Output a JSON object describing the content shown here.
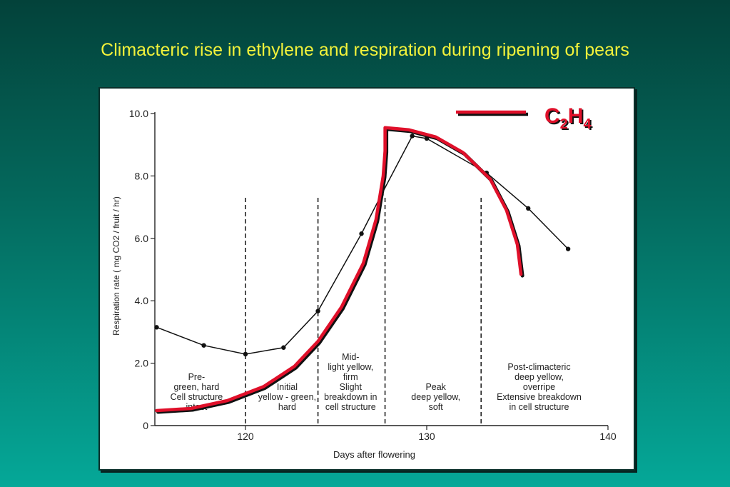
{
  "slide": {
    "title": "Climacteric rise in ethylene and respiration during ripening of pears"
  },
  "colors": {
    "background_top": "#03423a",
    "background_bottom": "#05a898",
    "title": "#f2f23a",
    "ethylene": "#e0102a",
    "respiration": "#111111"
  },
  "chart_data": {
    "type": "line",
    "title": "",
    "xlabel": "Days after flowering",
    "ylabel": "Respiration rate ( mg CO2 / fruit / hr)",
    "xlim": [
      115,
      140
    ],
    "ylim": [
      0,
      10
    ],
    "xticks": [
      120,
      130,
      140
    ],
    "xtick_labels": [
      "120",
      "130",
      "140"
    ],
    "yticks": [
      0,
      2,
      4,
      6,
      8,
      10
    ],
    "ytick_labels": [
      "0",
      "2.0",
      "4.0",
      "6.0",
      "8.0",
      "10.0"
    ],
    "grid": false,
    "legend": {
      "position": "top-right",
      "label_main": "C",
      "sub1": "2",
      "mid": "H",
      "sub2": "4"
    },
    "series": [
      {
        "name": "",
        "style": "line-with-points",
        "x": [
          115.1,
          117.7,
          120.0,
          122.1,
          124.0,
          126.4,
          127.5,
          129.2,
          130.0,
          133.3,
          135.6,
          137.8
        ],
        "y": [
          3.15,
          2.57,
          2.29,
          2.5,
          3.67,
          6.15,
          7.4,
          9.28,
          9.2,
          8.1,
          6.96,
          5.66
        ]
      },
      {
        "name": "C2H4",
        "style": "thick-red-curve",
        "x": [
          115.1,
          117.0,
          119.0,
          121.0,
          122.7,
          124.0,
          125.3,
          126.5,
          127.2,
          127.6,
          127.7,
          127.7,
          129.0,
          130.5,
          132.0,
          133.5,
          134.4,
          135.0,
          135.2
        ],
        "y": [
          0.48,
          0.55,
          0.8,
          1.25,
          1.9,
          2.7,
          3.8,
          5.2,
          6.6,
          8.0,
          8.8,
          9.55,
          9.48,
          9.25,
          8.75,
          7.9,
          6.9,
          5.8,
          4.85
        ]
      }
    ],
    "stage_dividers_x": [
      120.0,
      124.0,
      127.7,
      133.0
    ],
    "stages": [
      {
        "x": 117.3,
        "lines": [
          "Pre-",
          "green, hard",
          "Cell structure",
          "intact"
        ]
      },
      {
        "x": 122.3,
        "lines": [
          "Initial",
          "yellow - green,",
          "hard"
        ]
      },
      {
        "x": 125.8,
        "lines": [
          "Mid-",
          "light yellow,",
          "firm",
          "Slight",
          "breakdown in",
          "cell structure"
        ]
      },
      {
        "x": 130.5,
        "lines": [
          "Peak",
          "deep yellow,",
          "soft"
        ]
      },
      {
        "x": 136.2,
        "lines": [
          "Post-climacteric",
          "deep yellow,",
          "overripe",
          "Extensive breakdown",
          "in cell structure"
        ]
      }
    ]
  }
}
